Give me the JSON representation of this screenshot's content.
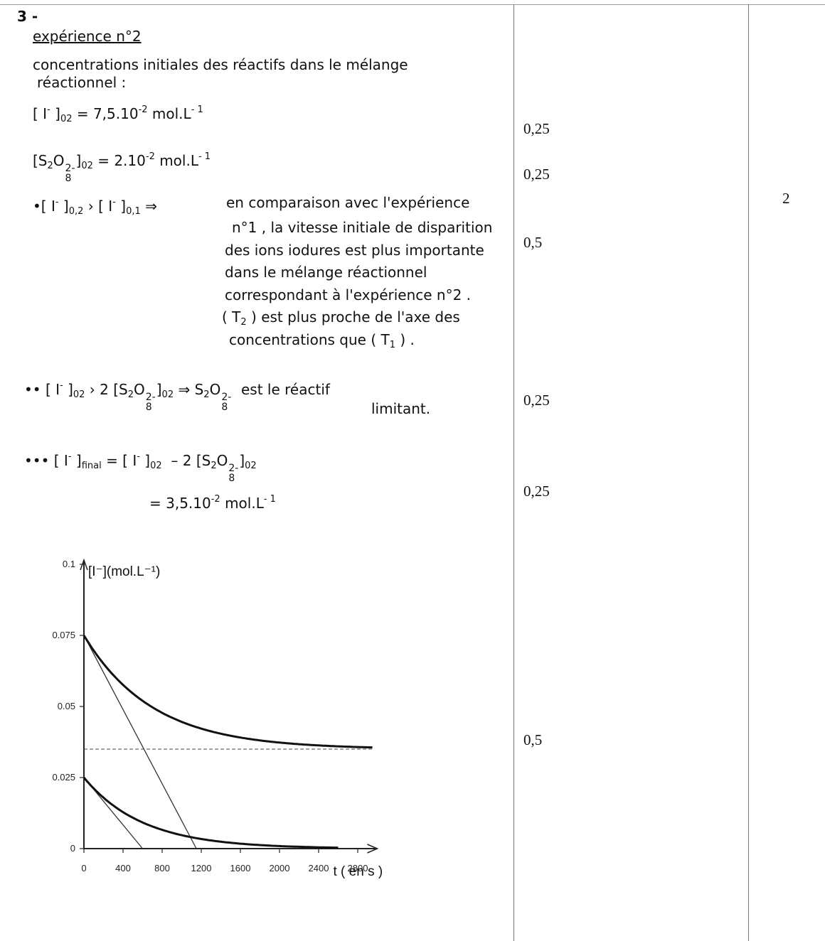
{
  "section": {
    "number": "3 -",
    "experiment_title": "expérience n°2",
    "intro_line1": "concentrations initiales des réactifs dans le mélange",
    "intro_line2": "réactionnel :"
  },
  "conc": {
    "i_prefix": "[ I",
    "i_sub": "02",
    "i_value": "= 7,5.10",
    "i_exp": "-2",
    "i_unit": "mol.L",
    "i_unit_exp": "- 1",
    "s_prefix": "[S",
    "s_sub2": "2",
    "s_o": "O",
    "s_sup": "2-",
    "s_sub": "8",
    "s_close": "]",
    "s_sub02": "02",
    "s_value": "= 2.10",
    "s_exp": "-2",
    "s_unit": "mol.L",
    "s_unit_exp": "- 1"
  },
  "point1": {
    "bullet": "•[ I",
    "sub1": "0,2",
    "gt": "› [ I",
    "sub2": "0,1",
    "arrow": "⇒",
    "line1": "en comparaison avec l'expérience",
    "line2": "n°1 , la vitesse initiale de disparition",
    "line3": "des ions iodures est plus importante",
    "line4": "dans le mélange réactionnel",
    "line5": "correspondant à l'expérience n°2 .",
    "line6a": "( T",
    "line6sub": "2",
    "line6b": ") est plus proche de l'axe des",
    "line7a": "concentrations que ( T",
    "line7sub": "1",
    "line7b": ") ."
  },
  "point2": {
    "bullet": "•• [ I",
    "sub": "02",
    "mid": "› 2 [S",
    "end": "est le réactif",
    "end2": "limitant."
  },
  "point3": {
    "bullet": "••• [ I",
    "sub_final": "final",
    "mid": "= [ I",
    "sub02": "02",
    "minus": "– 2 [S",
    "result": "= 3,5.10",
    "result_exp": "-2",
    "result_unit": "mol.L",
    "result_unit_exp": "- 1"
  },
  "marks": {
    "m1": "0,25",
    "m2": "0,25",
    "m3": "0,5",
    "m4": "0,25",
    "m5": "0,25",
    "m6": "0,5",
    "total": "2"
  },
  "chart_data": {
    "type": "line",
    "ylabel": "[I⁻](mol.L⁻¹)",
    "xlabel": "t ( en s )",
    "xlim": [
      0,
      3000
    ],
    "ylim": [
      0,
      0.1
    ],
    "x_ticks": [
      0,
      400,
      800,
      1200,
      1600,
      2000,
      2400,
      2800
    ],
    "x_tick_labels": [
      "0",
      "400",
      "800",
      "1200",
      "1600",
      "2000",
      "2400",
      "2800"
    ],
    "y_ticks": [
      0,
      0.025,
      0.05,
      0.075,
      0.1
    ],
    "y_tick_labels": [
      "0",
      "0.025",
      "0.05",
      "0.075",
      "0.1"
    ],
    "series": [
      {
        "y0": 0.075,
        "yinf": 0.035,
        "tau": 700,
        "tmax": 2950
      },
      {
        "y0": 0.025,
        "yinf": 0.0,
        "tau": 600,
        "tmax": 2600
      }
    ],
    "tangents": [
      {
        "x1": 0,
        "y1": 0.075,
        "x2": 1150,
        "y2": 0
      },
      {
        "x1": 0,
        "y1": 0.025,
        "x2": 600,
        "y2": 0
      }
    ],
    "asymptote": {
      "y": 0.035,
      "x1": 0,
      "x2": 2950
    }
  }
}
